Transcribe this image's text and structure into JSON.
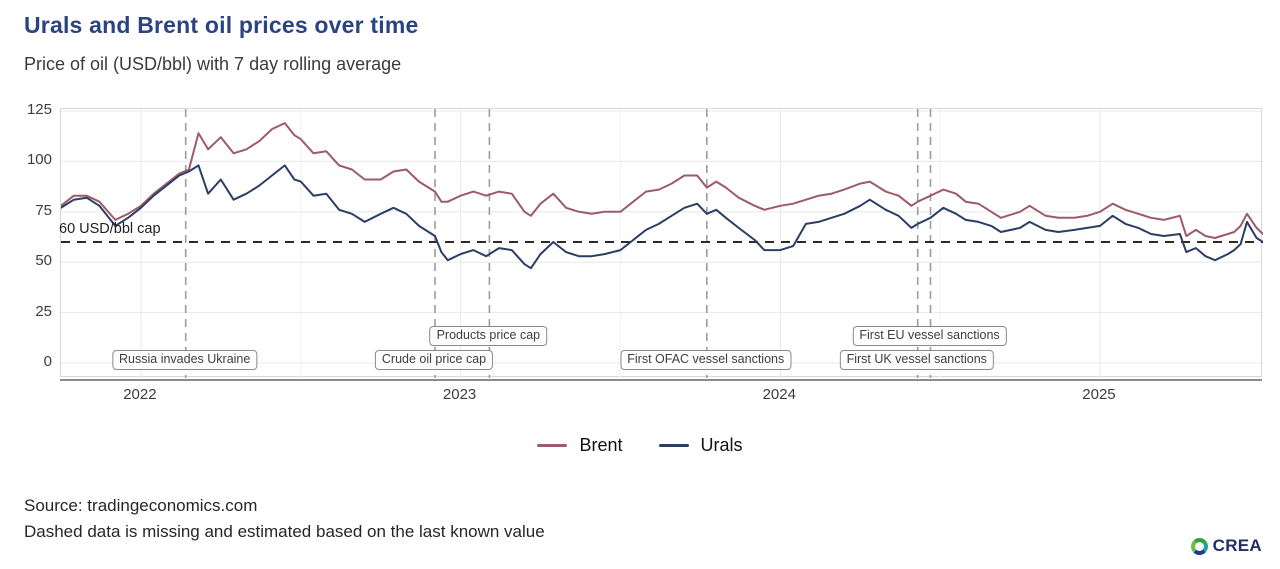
{
  "header": {
    "title": "Urals and Brent oil prices over time",
    "subtitle": "Price of oil (USD/bbl) with 7 day rolling average"
  },
  "footer": {
    "source": "Source: tradingeconomics.com",
    "note": "Dashed data is missing and estimated based on the last known value"
  },
  "branding": {
    "name": "CREA",
    "icon": "crea-logo-icon",
    "text_color": "#232d66"
  },
  "chart_data": {
    "type": "line",
    "title": "Urals and Brent oil prices over time",
    "subtitle": "Price of oil (USD/bbl) with 7 day rolling average",
    "x_unit": "decimal_year",
    "xlim": [
      2021.75,
      2025.51
    ],
    "ylim": [
      0,
      125
    ],
    "yticks": [
      0,
      25,
      50,
      75,
      100,
      125
    ],
    "xticks": [
      2022,
      2023,
      2024,
      2025
    ],
    "grid": "light horizontal and vertical major gridlines",
    "legend_position": "bottom-center",
    "hline": {
      "value": 60,
      "label": "60 USD/bbl cap",
      "style": "dashed",
      "color": "#2b2b2b"
    },
    "events": [
      {
        "x": 2022.14,
        "label": "Russia invades Ukraine",
        "lane": "lower"
      },
      {
        "x": 2022.92,
        "label": "Crude oil price cap",
        "lane": "lower"
      },
      {
        "x": 2023.09,
        "label": "Products price cap",
        "lane": "upper"
      },
      {
        "x": 2023.77,
        "label": "First OFAC vessel sanctions",
        "lane": "lower"
      },
      {
        "x": 2024.43,
        "label": "First UK vessel sanctions",
        "lane": "lower"
      },
      {
        "x": 2024.47,
        "label": "First EU vessel sanctions",
        "lane": "upper"
      }
    ],
    "x": [
      2021.75,
      2021.79,
      2021.83,
      2021.87,
      2021.92,
      2021.96,
      2022.0,
      2022.04,
      2022.08,
      2022.12,
      2022.15,
      2022.18,
      2022.21,
      2022.25,
      2022.29,
      2022.33,
      2022.37,
      2022.41,
      2022.45,
      2022.48,
      2022.5,
      2022.54,
      2022.58,
      2022.62,
      2022.66,
      2022.7,
      2022.75,
      2022.79,
      2022.83,
      2022.87,
      2022.92,
      2022.94,
      2022.96,
      2023.0,
      2023.04,
      2023.08,
      2023.12,
      2023.16,
      2023.2,
      2023.22,
      2023.25,
      2023.29,
      2023.33,
      2023.37,
      2023.41,
      2023.45,
      2023.5,
      2023.54,
      2023.58,
      2023.62,
      2023.66,
      2023.7,
      2023.74,
      2023.77,
      2023.8,
      2023.83,
      2023.87,
      2023.92,
      2023.95,
      2024.0,
      2024.04,
      2024.08,
      2024.12,
      2024.16,
      2024.2,
      2024.25,
      2024.28,
      2024.33,
      2024.37,
      2024.41,
      2024.43,
      2024.47,
      2024.51,
      2024.55,
      2024.58,
      2024.62,
      2024.66,
      2024.69,
      2024.75,
      2024.78,
      2024.83,
      2024.87,
      2024.92,
      2024.96,
      2025.0,
      2025.04,
      2025.08,
      2025.12,
      2025.16,
      2025.2,
      2025.25,
      2025.27,
      2025.3,
      2025.33,
      2025.36,
      2025.4,
      2025.42,
      2025.44,
      2025.46,
      2025.49,
      2025.51
    ],
    "series": [
      {
        "name": "Brent",
        "color": "#9d5a6a",
        "values": [
          78,
          83,
          83,
          80,
          71,
          74,
          78,
          84,
          89,
          94,
          96,
          114,
          106,
          112,
          104,
          106,
          110,
          116,
          119,
          113,
          111,
          104,
          105,
          98,
          96,
          91,
          91,
          95,
          96,
          90,
          85,
          80,
          80,
          83,
          85,
          83,
          85,
          84,
          75,
          73,
          79,
          84,
          77,
          75,
          74,
          75,
          75,
          80,
          85,
          86,
          89,
          93,
          93,
          87,
          90,
          87,
          82,
          78,
          76,
          78,
          79,
          81,
          83,
          84,
          86,
          89,
          90,
          85,
          83,
          78,
          80,
          83,
          86,
          84,
          80,
          79,
          75,
          72,
          75,
          78,
          73,
          72,
          72,
          73,
          75,
          79,
          76,
          74,
          72,
          71,
          73,
          63,
          66,
          63,
          62,
          64,
          65,
          68,
          74,
          67,
          64
        ]
      },
      {
        "name": "Urals",
        "color": "#2b3e63",
        "values": [
          77,
          81,
          82,
          78,
          68,
          72,
          77,
          83,
          88,
          93,
          95,
          98,
          84,
          91,
          81,
          84,
          88,
          93,
          98,
          91,
          90,
          83,
          84,
          76,
          74,
          70,
          74,
          77,
          74,
          68,
          63,
          55,
          51,
          54,
          56,
          53,
          57,
          56,
          49,
          47,
          54,
          60,
          55,
          53,
          53,
          54,
          56,
          61,
          66,
          69,
          73,
          77,
          79,
          74,
          76,
          72,
          67,
          61,
          56,
          56,
          58,
          69,
          70,
          72,
          74,
          78,
          81,
          76,
          73,
          67,
          69,
          72,
          77,
          74,
          71,
          70,
          68,
          65,
          67,
          70,
          66,
          65,
          66,
          67,
          68,
          73,
          69,
          67,
          64,
          63,
          64,
          55,
          57,
          53,
          51,
          54,
          56,
          59,
          70,
          62,
          60
        ]
      }
    ]
  }
}
